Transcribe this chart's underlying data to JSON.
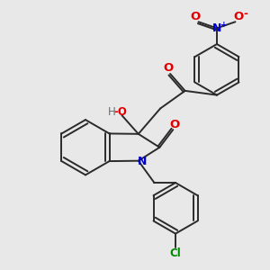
{
  "bg_color": "#e8e8e8",
  "bond_color": "#2a2a2a",
  "atom_colors": {
    "O": "#e00000",
    "N": "#0000cc",
    "Cl": "#008800",
    "H": "#607070"
  },
  "lw": 1.4,
  "dbo": 0.055,
  "fs": 8.5,
  "fig_size": [
    3.0,
    3.0
  ],
  "dpi": 100
}
